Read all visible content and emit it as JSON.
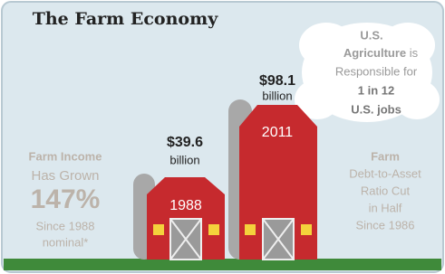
{
  "title": "The Farm Economy",
  "cloud": [
    "U.S.",
    "Agriculture",
    "is",
    "Responsible for",
    "1 in 12",
    "U.S. jobs"
  ],
  "left": [
    "Farm Income",
    "Has Grown",
    "147%",
    "Since 1988",
    "nominal*"
  ],
  "barns": [
    {
      "value": "$39.6",
      "unit": "billion",
      "year": "1988"
    },
    {
      "value": "$98.1",
      "unit": "billion",
      "year": "2011"
    }
  ],
  "right": [
    "Farm",
    "Debt-to-Asset",
    "Ratio Cut",
    "in Half",
    "Since 1986"
  ]
}
